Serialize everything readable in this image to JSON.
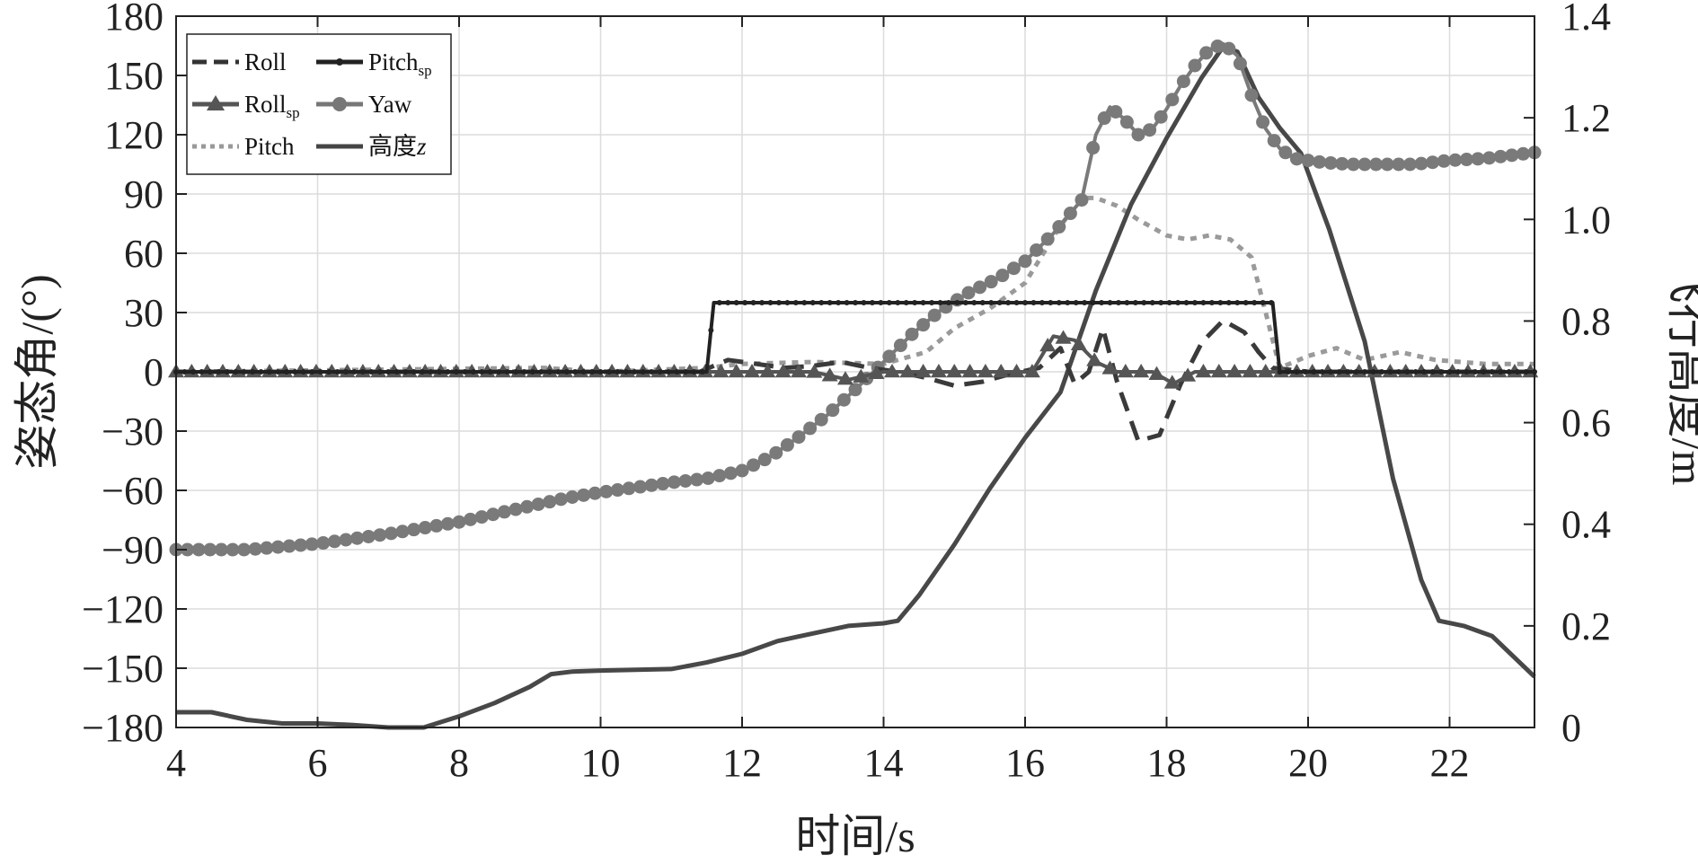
{
  "chart_data": {
    "type": "line",
    "xlabel": "时间/s",
    "ylabel_left": "姿态角/(°)",
    "ylabel_right": "飞行高度/m",
    "xlim": [
      4,
      23.2
    ],
    "ylim_left": [
      -180,
      180
    ],
    "ylim_right": [
      0,
      1.4
    ],
    "x_ticks": [
      4,
      6,
      8,
      10,
      12,
      14,
      16,
      18,
      20,
      22
    ],
    "y_ticks_left": [
      180,
      150,
      120,
      90,
      60,
      30,
      0,
      -30,
      -60,
      -90,
      -120,
      -150,
      -180
    ],
    "y_ticks_right": [
      1.4,
      1.2,
      1.0,
      0.8,
      0.6,
      0.4,
      0.2,
      0
    ],
    "y_tick_labels_left": [
      "180",
      "150",
      "120",
      "90",
      "60",
      "30",
      "0",
      "−30",
      "−60",
      "−90",
      "−120",
      "−150",
      "−180"
    ],
    "y_tick_labels_right": [
      "1.4",
      "1.2",
      "1.0",
      "0.8",
      "0.6",
      "0.4",
      "0.2",
      "0"
    ],
    "grid": true,
    "legend_position": "top-left",
    "legend": [
      {
        "name": "Roll",
        "sub": "",
        "style": "dashed",
        "color": "#333333"
      },
      {
        "name": "Pitch",
        "sub": "sp",
        "style": "solid-dot",
        "color": "#222222"
      },
      {
        "name": "Roll",
        "sub": "sp",
        "style": "triangle",
        "color": "#555555"
      },
      {
        "name": "Yaw",
        "sub": "",
        "style": "circle",
        "color": "#777777"
      },
      {
        "name": "Pitch",
        "sub": "",
        "style": "dotted",
        "color": "#999999"
      },
      {
        "name": "高度",
        "sub": "",
        "italic": "z",
        "style": "solid",
        "color": "#444444"
      }
    ],
    "series": [
      {
        "name": "Roll",
        "axis": "left",
        "x": [
          4,
          8,
          11.4,
          11.8,
          12.2,
          12.6,
          13.0,
          13.4,
          13.8,
          14.2,
          14.6,
          15.0,
          15.4,
          15.8,
          16.2,
          16.5,
          16.7,
          16.9,
          17.1,
          17.3,
          17.6,
          17.9,
          18.2,
          18.5,
          18.8,
          19.1,
          19.3,
          19.5,
          20.0,
          21.0,
          22.0,
          23.2
        ],
        "y": [
          0,
          0,
          0,
          6,
          4,
          2,
          3,
          5,
          2,
          0,
          -3,
          -7,
          -5,
          -1,
          2,
          12,
          -6,
          0,
          22,
          -5,
          -35,
          -32,
          -6,
          15,
          26,
          20,
          10,
          2,
          0,
          0,
          0,
          0
        ]
      },
      {
        "name": "Pitch_sp",
        "axis": "left",
        "x": [
          4,
          11.3,
          11.5,
          11.6,
          19.5,
          19.6,
          23.2
        ],
        "y": [
          0,
          0,
          0,
          35,
          35,
          0,
          0
        ]
      },
      {
        "name": "Roll_sp",
        "axis": "left",
        "x": [
          4,
          13,
          13.5,
          14,
          16.1,
          16.4,
          16.7,
          17.0,
          17.3,
          17.8,
          18.1,
          18.4,
          18.7,
          23.2
        ],
        "y": [
          0,
          0,
          -4,
          0,
          0,
          18,
          16,
          5,
          0,
          0,
          -6,
          0,
          0,
          0
        ]
      },
      {
        "name": "Yaw",
        "axis": "left",
        "x": [
          4,
          5,
          6,
          7,
          8,
          9,
          9.5,
          10,
          11,
          11.5,
          12,
          12.4,
          12.8,
          13.2,
          13.6,
          14.0,
          14.4,
          14.8,
          15.2,
          15.6,
          16.0,
          16.4,
          16.8,
          17.0,
          17.2,
          17.4,
          17.6,
          17.8,
          18.0,
          18.2,
          18.4,
          18.6,
          18.8,
          19.0,
          19.2,
          19.4,
          19.6,
          19.8,
          20.2,
          20.6,
          21.0,
          21.5,
          22,
          22.5,
          23.2
        ],
        "y": [
          -90,
          -90,
          -87,
          -82,
          -76,
          -68,
          -64,
          -61,
          -56,
          -54,
          -50,
          -43,
          -33,
          -22,
          -9,
          5,
          19,
          31,
          40,
          47,
          56,
          70,
          87,
          120,
          134,
          128,
          120,
          123,
          133,
          145,
          155,
          163,
          166,
          160,
          140,
          123,
          113,
          108,
          106,
          105,
          105,
          105,
          107,
          108,
          111
        ]
      },
      {
        "name": "Pitch",
        "axis": "left",
        "x": [
          4,
          9.2,
          10,
          11.5,
          12,
          13,
          14,
          14.6,
          15.0,
          15.5,
          16.0,
          16.5,
          16.8,
          17.0,
          17.3,
          17.6,
          18.0,
          18.3,
          18.6,
          18.9,
          19.2,
          19.4,
          19.6,
          19.8,
          20.0,
          20.4,
          20.8,
          21.3,
          21.8,
          22.5,
          23.2
        ],
        "y": [
          0,
          2,
          0,
          2,
          4,
          5,
          4,
          10,
          22,
          32,
          45,
          74,
          88,
          88,
          84,
          77,
          69,
          67,
          69,
          67,
          58,
          30,
          2,
          5,
          8,
          12,
          6,
          10,
          6,
          4,
          4
        ]
      },
      {
        "name": "高度z",
        "axis": "right",
        "x": [
          4,
          4.5,
          5,
          5.5,
          6,
          6.5,
          7,
          7.5,
          8,
          8.5,
          9,
          9.3,
          9.6,
          10,
          11,
          11.5,
          12,
          12.5,
          13,
          13.5,
          14,
          14.2,
          14.5,
          15,
          15.5,
          16,
          16.5,
          17,
          17.5,
          18,
          18.5,
          18.8,
          19.0,
          19.3,
          19.6,
          19.9,
          20.3,
          20.8,
          21.2,
          21.6,
          21.85,
          22.2,
          22.6,
          23.2
        ],
        "y": [
          0.03,
          0.03,
          0.015,
          0.008,
          0.008,
          0.005,
          0.0,
          0.0,
          0.022,
          0.048,
          0.08,
          0.105,
          0.11,
          0.112,
          0.115,
          0.128,
          0.145,
          0.17,
          0.185,
          0.2,
          0.205,
          0.21,
          0.26,
          0.36,
          0.47,
          0.57,
          0.66,
          0.86,
          1.03,
          1.16,
          1.28,
          1.34,
          1.33,
          1.24,
          1.18,
          1.13,
          0.98,
          0.76,
          0.49,
          0.29,
          0.21,
          0.2,
          0.18,
          0.1
        ]
      }
    ]
  }
}
